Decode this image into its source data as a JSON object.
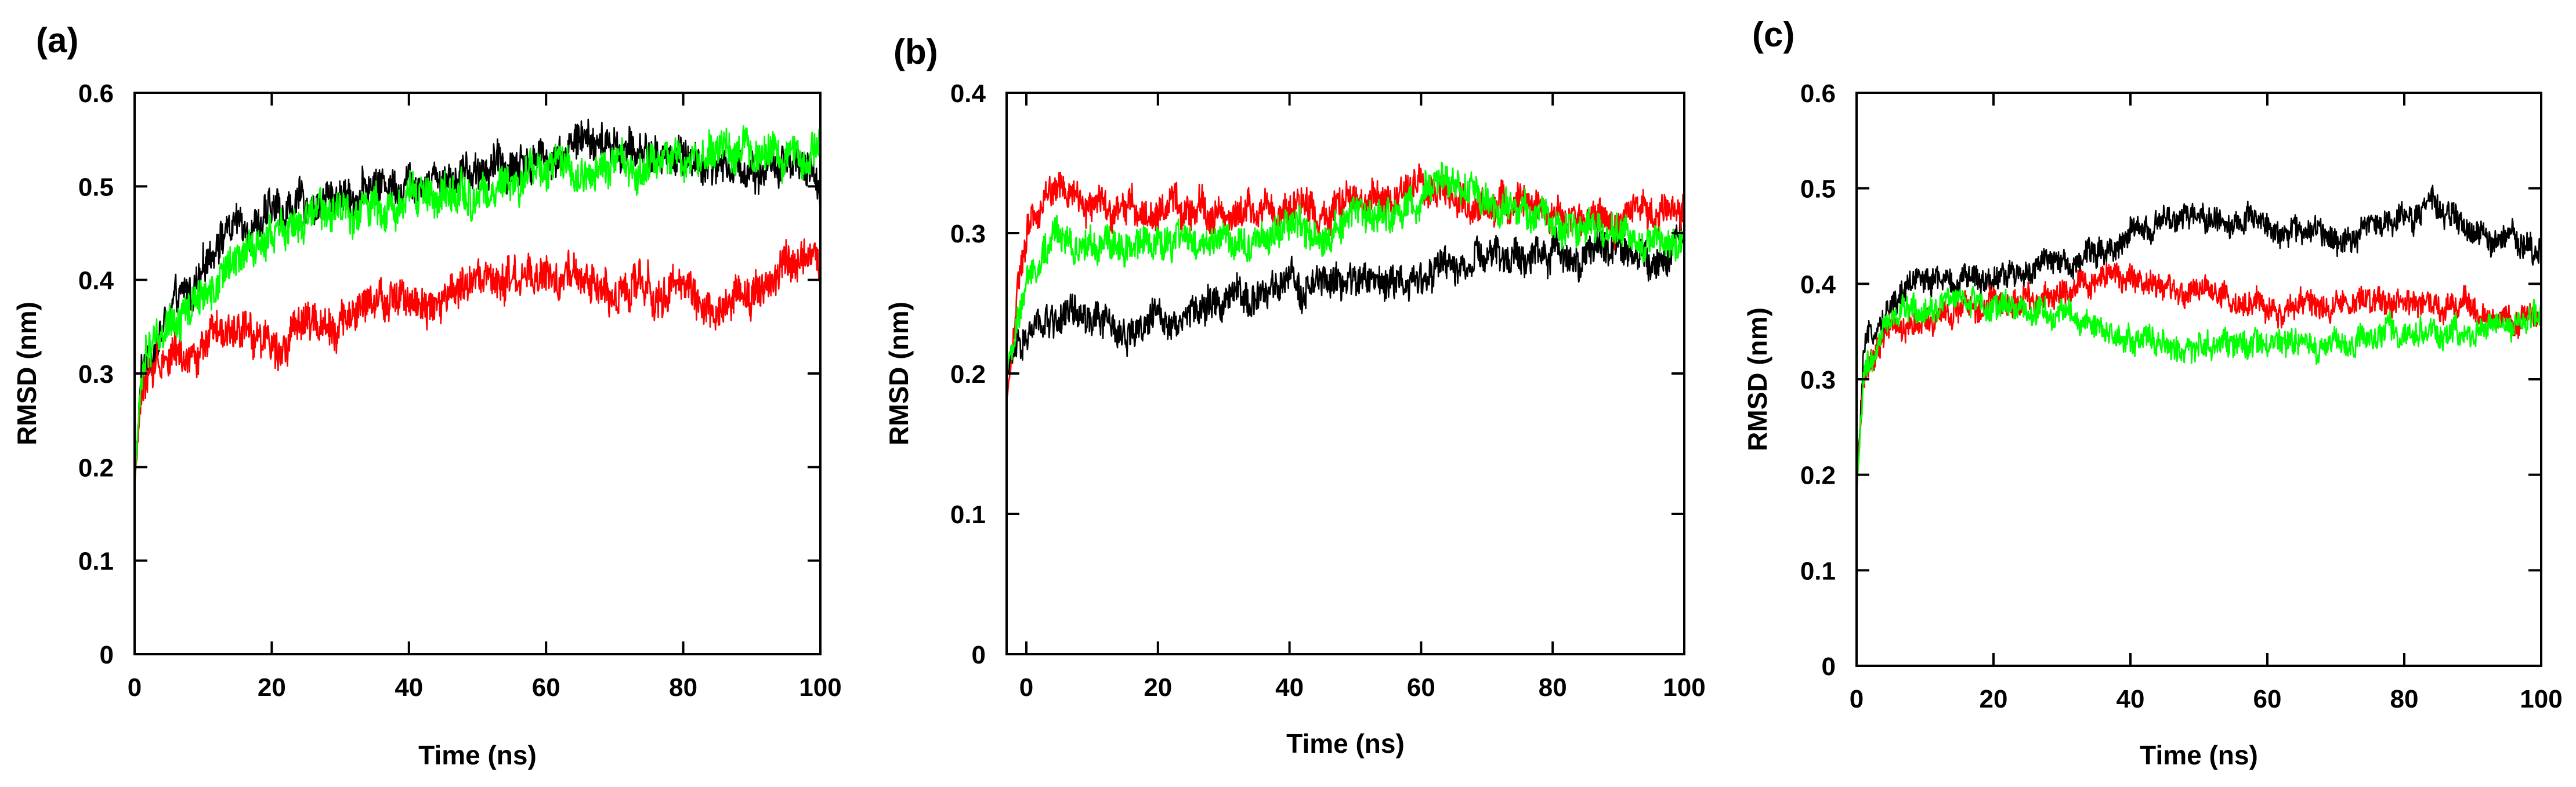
{
  "colors": {
    "black": "#000000",
    "red": "#ff0000",
    "green": "#00ff00"
  },
  "chart_data": [
    {
      "panel_label": "(a)",
      "type": "line",
      "xlabel": "Time (ns)",
      "ylabel": "RMSD (nm)",
      "xlim": [
        0,
        100
      ],
      "ylim": [
        0,
        0.6
      ],
      "xticks": [
        0,
        20,
        40,
        60,
        80,
        100
      ],
      "xtick_labels": [
        "0",
        "20",
        "40",
        "60",
        "80",
        "100"
      ],
      "yticks": [
        0,
        0.1,
        0.2,
        0.3,
        0.4,
        0.5,
        0.6
      ],
      "ytick_labels": [
        "0",
        "0.1",
        "0.2",
        "0.3",
        "0.4",
        "0.5",
        "0.6"
      ],
      "noise": 0.022,
      "series": [
        {
          "name": "black",
          "color": "#000000",
          "x": [
            0,
            1,
            3,
            5,
            10,
            12,
            15,
            20,
            25,
            30,
            40,
            50,
            60,
            65,
            70,
            80,
            90,
            95,
            100
          ],
          "y": [
            0.18,
            0.3,
            0.33,
            0.36,
            0.4,
            0.45,
            0.46,
            0.47,
            0.48,
            0.49,
            0.51,
            0.52,
            0.53,
            0.55,
            0.54,
            0.53,
            0.52,
            0.52,
            0.5
          ]
        },
        {
          "name": "red",
          "color": "#ff0000",
          "x": [
            0,
            1,
            3,
            5,
            10,
            20,
            30,
            40,
            50,
            60,
            70,
            80,
            85,
            90,
            95,
            100
          ],
          "y": [
            0.18,
            0.28,
            0.31,
            0.32,
            0.33,
            0.34,
            0.36,
            0.38,
            0.39,
            0.4,
            0.39,
            0.39,
            0.37,
            0.39,
            0.41,
            0.42
          ]
        },
        {
          "name": "green",
          "color": "#00ff00",
          "x": [
            0,
            1,
            3,
            5,
            10,
            15,
            20,
            30,
            40,
            50,
            60,
            70,
            80,
            90,
            100
          ],
          "y": [
            0.18,
            0.3,
            0.34,
            0.36,
            0.38,
            0.42,
            0.45,
            0.47,
            0.49,
            0.49,
            0.51,
            0.52,
            0.53,
            0.54,
            0.53
          ]
        }
      ]
    },
    {
      "panel_label": "(b)",
      "type": "line",
      "xlabel": "Time (ns)",
      "ylabel": "RMSD (nm)",
      "xlim": [
        -3,
        100
      ],
      "ylim": [
        0,
        0.4
      ],
      "xticks": [
        0,
        20,
        40,
        60,
        80,
        100
      ],
      "xtick_labels": [
        "0",
        "20",
        "40",
        "60",
        "80",
        "100"
      ],
      "yticks": [
        0,
        0.1,
        0.2,
        0.3,
        0.4
      ],
      "ytick_labels": [
        "0",
        "0.1",
        "0.2",
        "0.3",
        "0.4"
      ],
      "noise": 0.013,
      "series": [
        {
          "name": "black",
          "color": "#000000",
          "x": [
            -3,
            -1,
            1,
            5,
            10,
            15,
            20,
            30,
            40,
            50,
            60,
            70,
            80,
            90,
            95,
            100
          ],
          "y": [
            0.2,
            0.22,
            0.23,
            0.24,
            0.235,
            0.23,
            0.24,
            0.25,
            0.26,
            0.265,
            0.27,
            0.28,
            0.285,
            0.29,
            0.28,
            0.3
          ]
        },
        {
          "name": "red",
          "color": "#ff0000",
          "x": [
            -3,
            -1,
            1,
            3,
            5,
            10,
            20,
            30,
            40,
            50,
            60,
            70,
            80,
            90,
            100
          ],
          "y": [
            0.18,
            0.27,
            0.31,
            0.33,
            0.33,
            0.32,
            0.315,
            0.315,
            0.315,
            0.32,
            0.33,
            0.32,
            0.31,
            0.31,
            0.32
          ]
        },
        {
          "name": "green",
          "color": "#00ff00",
          "x": [
            -3,
            -1,
            1,
            5,
            10,
            20,
            30,
            40,
            50,
            60,
            63,
            70,
            80,
            90,
            100
          ],
          "y": [
            0.2,
            0.25,
            0.28,
            0.3,
            0.29,
            0.29,
            0.295,
            0.3,
            0.31,
            0.32,
            0.34,
            0.32,
            0.31,
            0.3,
            0.29
          ]
        }
      ]
    },
    {
      "panel_label": "(c)",
      "type": "line",
      "xlabel": "Time (ns)",
      "ylabel": "RMSD (nm)",
      "xlim": [
        0,
        100
      ],
      "ylim": [
        0,
        0.6
      ],
      "xticks": [
        0,
        20,
        40,
        60,
        80,
        100
      ],
      "xtick_labels": [
        "0",
        "20",
        "40",
        "60",
        "80",
        "100"
      ],
      "yticks": [
        0,
        0.1,
        0.2,
        0.3,
        0.4,
        0.5,
        0.6
      ],
      "ytick_labels": [
        "0",
        "0.1",
        "0.2",
        "0.3",
        "0.4",
        "0.5",
        "0.6"
      ],
      "noise": 0.015,
      "series": [
        {
          "name": "black",
          "color": "#000000",
          "x": [
            0,
            1,
            3,
            5,
            10,
            15,
            20,
            30,
            40,
            50,
            60,
            70,
            80,
            85,
            90,
            100
          ],
          "y": [
            0.18,
            0.32,
            0.36,
            0.38,
            0.41,
            0.4,
            0.41,
            0.42,
            0.45,
            0.47,
            0.46,
            0.45,
            0.47,
            0.48,
            0.45,
            0.44
          ]
        },
        {
          "name": "red",
          "color": "#ff0000",
          "x": [
            0,
            1,
            3,
            5,
            10,
            20,
            30,
            35,
            40,
            50,
            60,
            70,
            80,
            90,
            100
          ],
          "y": [
            0.18,
            0.3,
            0.33,
            0.35,
            0.36,
            0.38,
            0.39,
            0.41,
            0.4,
            0.39,
            0.37,
            0.38,
            0.38,
            0.37,
            0.36
          ]
        },
        {
          "name": "green",
          "color": "#00ff00",
          "x": [
            0,
            1,
            3,
            5,
            10,
            15,
            20,
            30,
            40,
            50,
            60,
            70,
            80,
            90,
            100
          ],
          "y": [
            0.18,
            0.3,
            0.34,
            0.36,
            0.38,
            0.39,
            0.38,
            0.37,
            0.34,
            0.33,
            0.34,
            0.34,
            0.35,
            0.35,
            0.37
          ]
        }
      ]
    }
  ]
}
